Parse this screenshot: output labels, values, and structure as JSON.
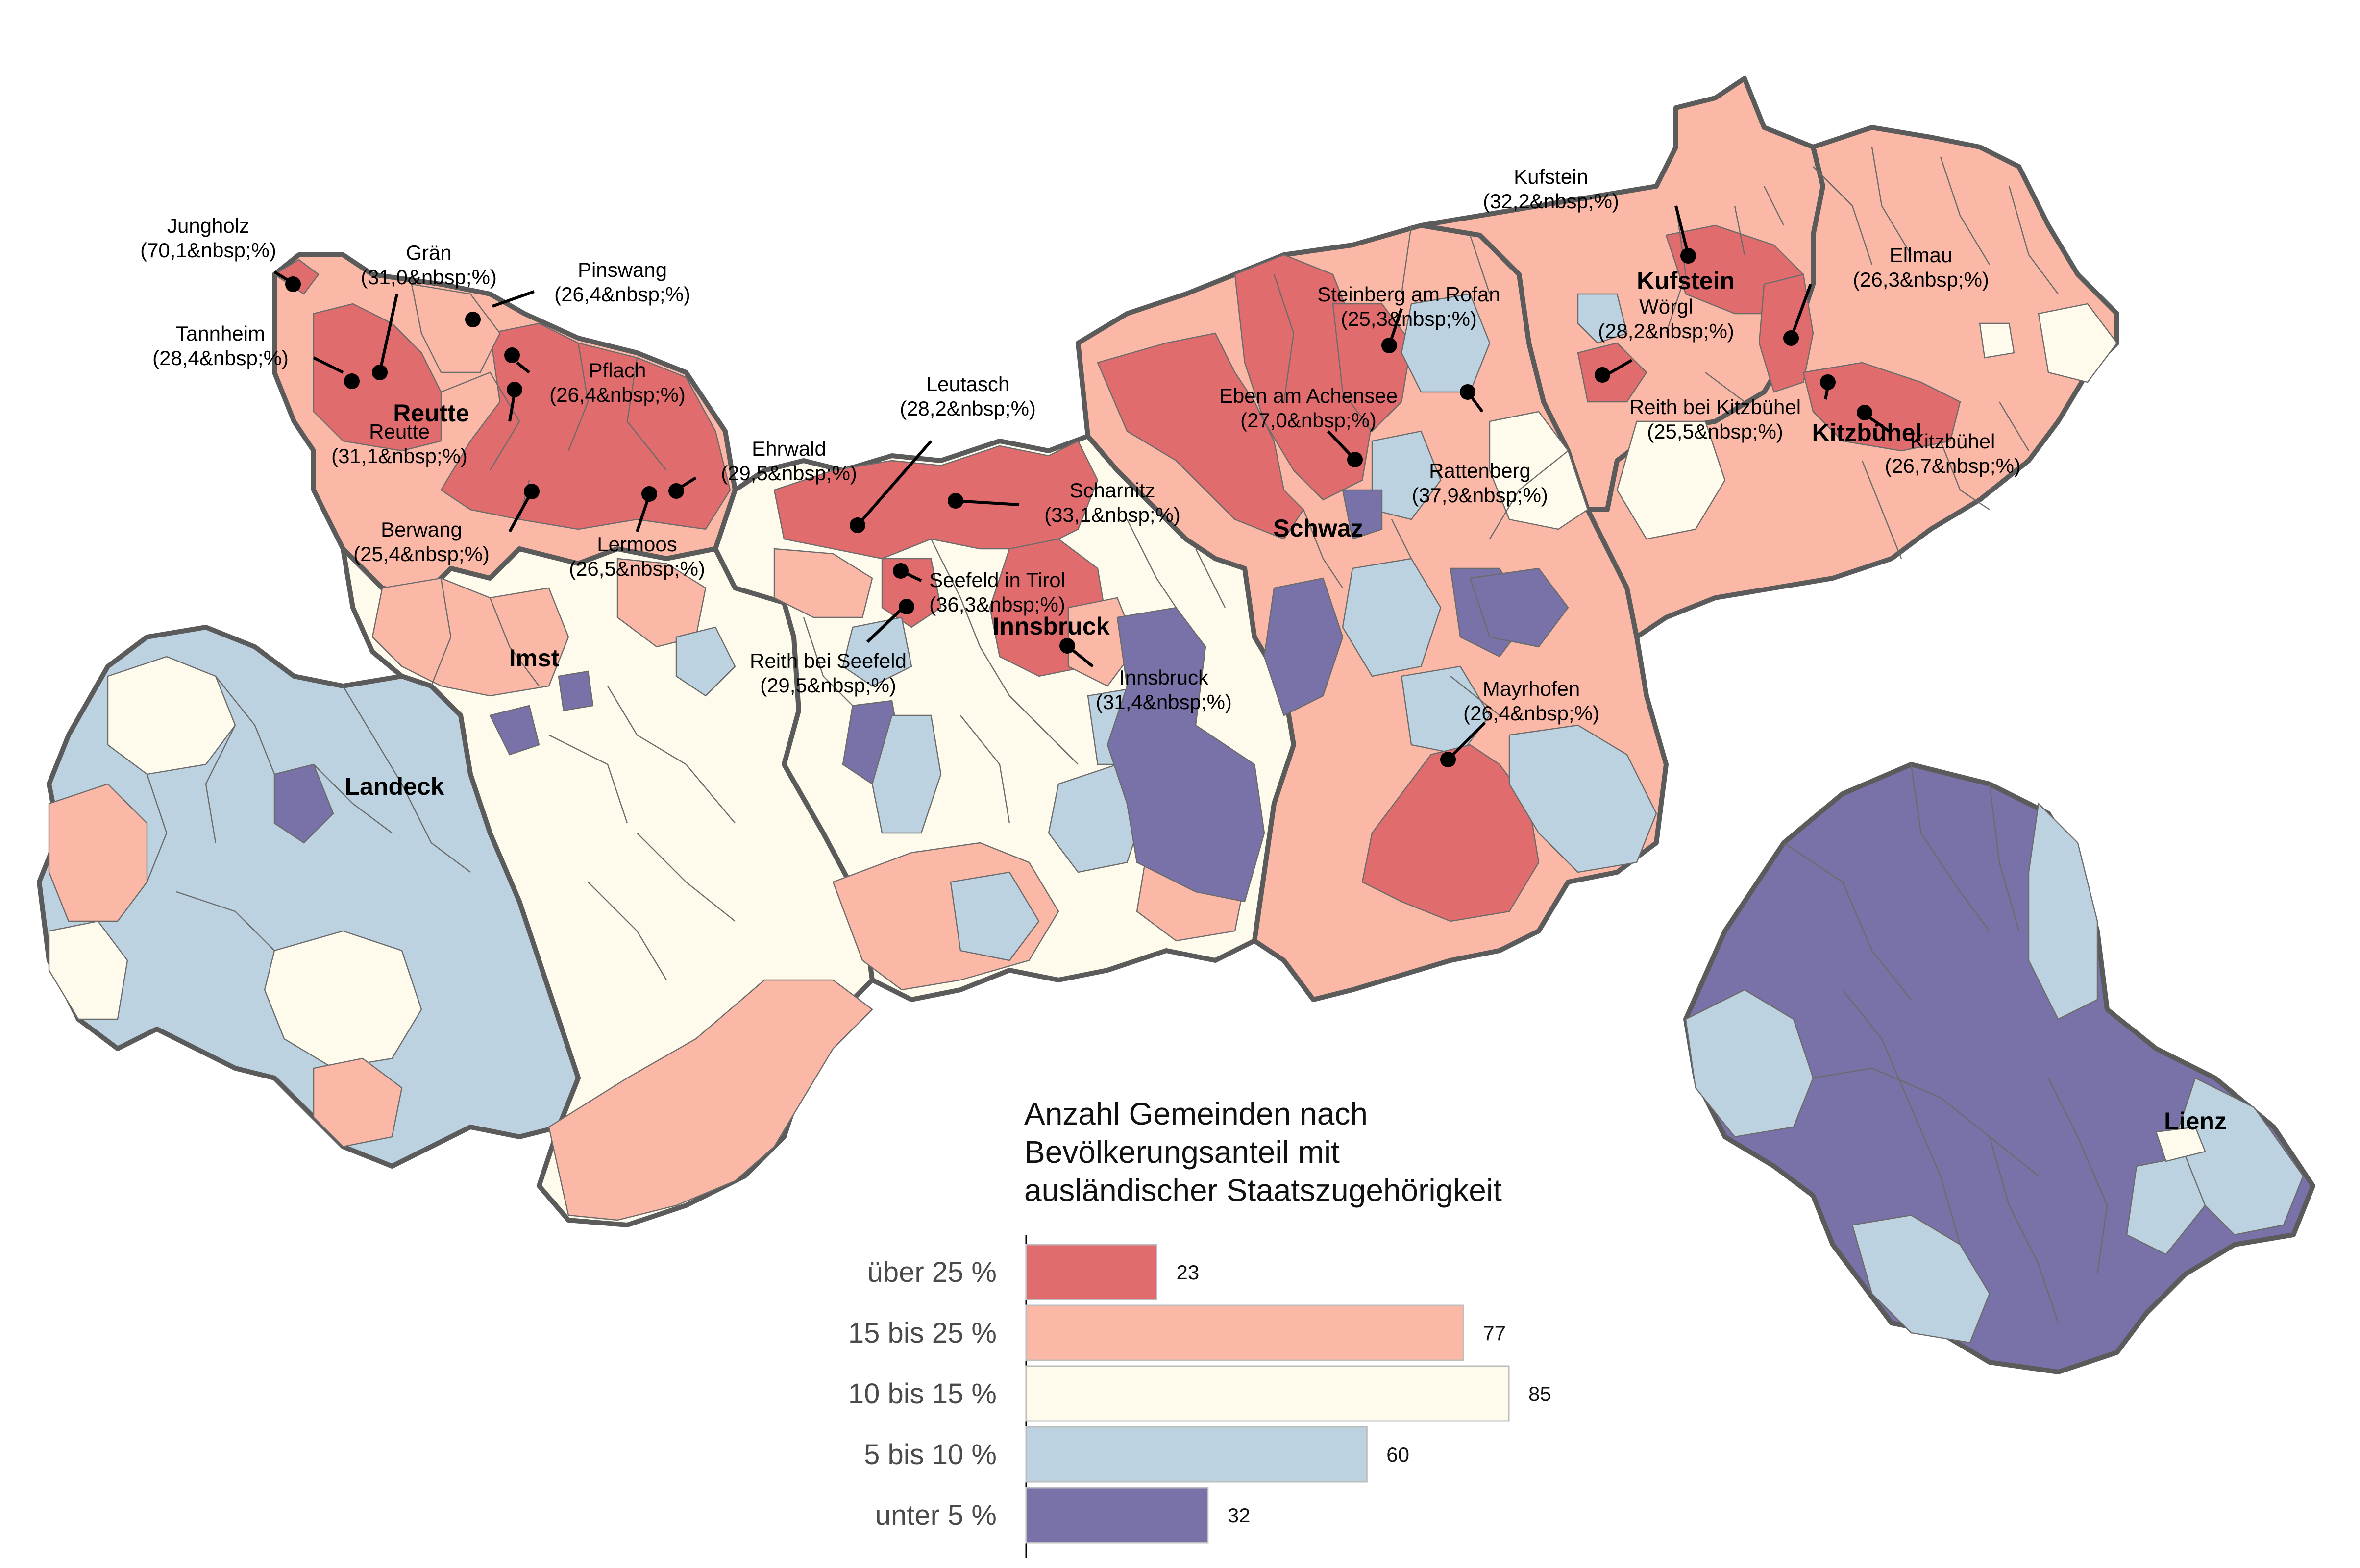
{
  "colors": {
    "over25": "#e06c6e",
    "from15to25": "#fbb8a6",
    "from10to15": "#fefbed",
    "from5to10": "#bcd2e0",
    "under5": "#7872a8",
    "border": "#5b5b5b"
  },
  "districts": [
    {
      "name": "Reutte"
    },
    {
      "name": "Imst"
    },
    {
      "name": "Landeck"
    },
    {
      "name": "Innsbruck"
    },
    {
      "name": "Schwaz"
    },
    {
      "name": "Kufstein"
    },
    {
      "name": "Kitzbühel"
    },
    {
      "name": "Lienz"
    }
  ],
  "municipality_labels": [
    {
      "name": "Jungholz",
      "value": "(70,1&nbsp;%)"
    },
    {
      "name": "Grän",
      "value": "(31,0&nbsp;%)"
    },
    {
      "name": "Pinswang",
      "value": "(26,4&nbsp;%)"
    },
    {
      "name": "Tannheim",
      "value": "(28,4&nbsp;%)"
    },
    {
      "name": "Pflach",
      "value": "(26,4&nbsp;%)"
    },
    {
      "name": "Reutte",
      "value": "(31,1&nbsp;%)"
    },
    {
      "name": "Ehrwald",
      "value": "(29,5&nbsp;%)"
    },
    {
      "name": "Berwang",
      "value": "(25,4&nbsp;%)"
    },
    {
      "name": "Lermoos",
      "value": "(26,5&nbsp;%)"
    },
    {
      "name": "Leutasch",
      "value": "(28,2&nbsp;%)"
    },
    {
      "name": "Scharnitz",
      "value": "(33,1&nbsp;%)"
    },
    {
      "name": "Seefeld in Tirol",
      "value": "(36,3&nbsp;%)"
    },
    {
      "name": "Reith bei Seefeld",
      "value": "(29,5&nbsp;%)"
    },
    {
      "name": "Innsbruck",
      "value": "(31,4&nbsp;%)"
    },
    {
      "name": "Steinberg am Rofan",
      "value": "(25,3&nbsp;%)"
    },
    {
      "name": "Eben am Achensee",
      "value": "(27,0&nbsp;%)"
    },
    {
      "name": "Rattenberg",
      "value": "(37,9&nbsp;%)"
    },
    {
      "name": "Mayrhofen",
      "value": "(26,4&nbsp;%)"
    },
    {
      "name": "Kufstein",
      "value": "(32,2&nbsp;%)"
    },
    {
      "name": "Wörgl",
      "value": "(28,2&nbsp;%)"
    },
    {
      "name": "Ellmau",
      "value": "(26,3&nbsp;%)"
    },
    {
      "name": "Reith bei Kitzbühel",
      "value": "(25,5&nbsp;%)"
    },
    {
      "name": "Kitzbühel",
      "value": "(26,7&nbsp;%)"
    }
  ],
  "chart_data": {
    "type": "bar",
    "orientation": "horizontal",
    "title": "Anzahl Gemeinden nach Bevölkerungsanteil mit ausländischer Staatszugehörigkeit",
    "title_lines": [
      "Anzahl Gemeinden nach",
      "Bevölkerungsanteil mit",
      "ausländischer Staatszugehörigkeit"
    ],
    "categories": [
      "über 25 %",
      "15 bis 25 %",
      "10 bis 15 %",
      "5 bis 10 %",
      "unter 5 %"
    ],
    "values": [
      23,
      77,
      85,
      60,
      32
    ],
    "colors": [
      "#e06c6e",
      "#fbb8a6",
      "#fefbed",
      "#bcd2e0",
      "#7872a8"
    ],
    "xlim": [
      0,
      85
    ],
    "grid": false,
    "legend": "none"
  }
}
